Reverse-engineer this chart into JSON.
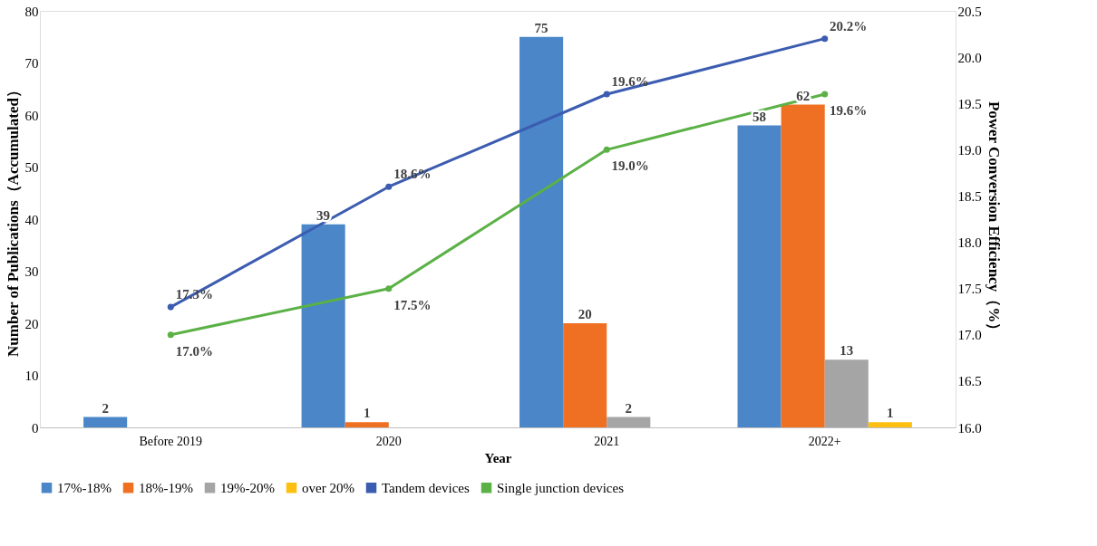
{
  "chart_data": {
    "type": "bar",
    "xlabel": "Year",
    "ylabel": "Number of Publications（Accumulated）",
    "y2label": "Power Conversion Efficiency（%）",
    "categories": [
      "Before 2019",
      "2020",
      "2021",
      "2022+"
    ],
    "series": [
      {
        "name": "17%-18%",
        "color": "#4a86c8",
        "values": [
          2,
          39,
          75,
          58
        ]
      },
      {
        "name": "18%-19%",
        "color": "#f07023",
        "values": [
          null,
          1,
          20,
          62
        ]
      },
      {
        "name": "19%-20%",
        "color": "#a5a5a5",
        "values": [
          null,
          null,
          2,
          13
        ]
      },
      {
        "name": "over 20%",
        "color": "#fdc010",
        "values": [
          null,
          null,
          null,
          1
        ]
      },
      {
        "name": "Tandem devices",
        "type": "line",
        "axis": "y2",
        "color": "#3b5cb0",
        "values": [
          17.3,
          18.6,
          19.6,
          20.2
        ],
        "value_labels": [
          "17.3%",
          "18.6%",
          "19.6%",
          "20.2%"
        ]
      },
      {
        "name": "Single junction devices",
        "type": "line",
        "axis": "y2",
        "color": "#5bb146",
        "values": [
          17.0,
          17.5,
          19.0,
          19.6
        ],
        "value_labels": [
          "17.0%",
          "17.5%",
          "19.0%",
          "19.6%"
        ]
      }
    ],
    "data_labels": true,
    "ylim": [
      0,
      80
    ],
    "yticks": [
      0,
      10,
      20,
      30,
      40,
      50,
      60,
      70,
      80
    ],
    "y2lim": [
      16.0,
      20.5
    ],
    "y2ticks": [
      {
        "value": 16,
        "label": "16.0"
      },
      16.5,
      {
        "value": 17,
        "label": "17.0"
      },
      17.5,
      {
        "value": 18,
        "label": "18.0"
      },
      18.5,
      {
        "value": 19,
        "label": "19.0"
      },
      19.5,
      {
        "value": 20,
        "label": "20.0"
      },
      20.5
    ],
    "marker": "circle",
    "legend": "bottom",
    "grid": false
  }
}
